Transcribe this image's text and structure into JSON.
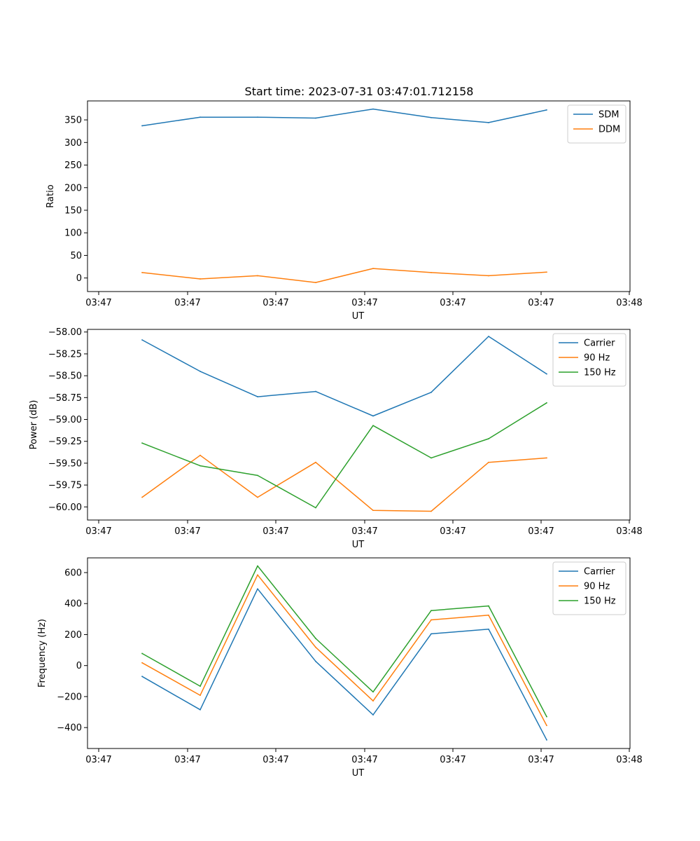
{
  "title": "Start time: 2023-07-31 03:47:01.712158",
  "colors": {
    "blue": "#1f77b4",
    "orange": "#ff7f0e",
    "green": "#2ca02c"
  },
  "chart_data": [
    {
      "type": "line",
      "title": "Start time: 2023-07-31 03:47:01.712158",
      "xlabel": "UT",
      "ylabel": "Ratio",
      "x_tick_labels": [
        "03:47",
        "03:47",
        "03:47",
        "03:47",
        "03:47",
        "03:47",
        "03:48"
      ],
      "y_ticks": [
        0,
        50,
        100,
        150,
        200,
        250,
        300,
        350
      ],
      "y_tick_labels": [
        "0",
        "50",
        "100",
        "150",
        "200",
        "250",
        "300",
        "350"
      ],
      "ylim": [
        -30,
        392
      ],
      "legend_position": "top-right",
      "series": [
        {
          "name": "SDM",
          "color": "#1f77b4",
          "values": [
            337,
            356,
            356,
            354,
            374,
            355,
            344,
            372
          ]
        },
        {
          "name": "DDM",
          "color": "#ff7f0e",
          "values": [
            12,
            -2,
            5,
            -10,
            21,
            12,
            5,
            13
          ]
        }
      ]
    },
    {
      "type": "line",
      "title": "",
      "xlabel": "UT",
      "ylabel": "Power (dB)",
      "x_tick_labels": [
        "03:47",
        "03:47",
        "03:47",
        "03:47",
        "03:47",
        "03:47",
        "03:48"
      ],
      "y_ticks": [
        -60.0,
        -59.75,
        -59.5,
        -59.25,
        -59.0,
        -58.75,
        -58.5,
        -58.25,
        -58.0
      ],
      "y_tick_labels": [
        "−60.00",
        "−59.75",
        "−59.50",
        "−59.25",
        "−59.00",
        "−58.75",
        "−58.50",
        "−58.25",
        "−58.00"
      ],
      "ylim": [
        -60.15,
        -57.97
      ],
      "legend_position": "top-right",
      "series": [
        {
          "name": "Carrier",
          "color": "#1f77b4",
          "values": [
            -58.09,
            -58.45,
            -58.74,
            -58.68,
            -58.96,
            -58.69,
            -58.05,
            -58.48
          ]
        },
        {
          "name": "90 Hz",
          "color": "#ff7f0e",
          "values": [
            -59.89,
            -59.41,
            -59.89,
            -59.49,
            -60.04,
            -60.05,
            -59.49,
            -59.44
          ]
        },
        {
          "name": "150 Hz",
          "color": "#2ca02c",
          "values": [
            -59.27,
            -59.53,
            -59.64,
            -60.01,
            -59.07,
            -59.44,
            -59.22,
            -58.81
          ]
        }
      ]
    },
    {
      "type": "line",
      "title": "",
      "xlabel": "UT",
      "ylabel": "Frequency (Hz)",
      "x_tick_labels": [
        "03:47",
        "03:47",
        "03:47",
        "03:47",
        "03:47",
        "03:47",
        "03:48"
      ],
      "y_ticks": [
        -400,
        -200,
        0,
        200,
        400,
        600
      ],
      "y_tick_labels": [
        "−400",
        "−200",
        "0",
        "200",
        "400",
        "600"
      ],
      "ylim": [
        -535,
        695
      ],
      "legend_position": "top-right",
      "series": [
        {
          "name": "Carrier",
          "color": "#1f77b4",
          "values": [
            -70,
            -285,
            495,
            27,
            -318,
            205,
            235,
            -480
          ]
        },
        {
          "name": "90 Hz",
          "color": "#ff7f0e",
          "values": [
            18,
            -192,
            585,
            118,
            -228,
            295,
            325,
            -387
          ]
        },
        {
          "name": "150 Hz",
          "color": "#2ca02c",
          "values": [
            78,
            -133,
            643,
            175,
            -170,
            355,
            385,
            -330
          ]
        }
      ]
    }
  ]
}
